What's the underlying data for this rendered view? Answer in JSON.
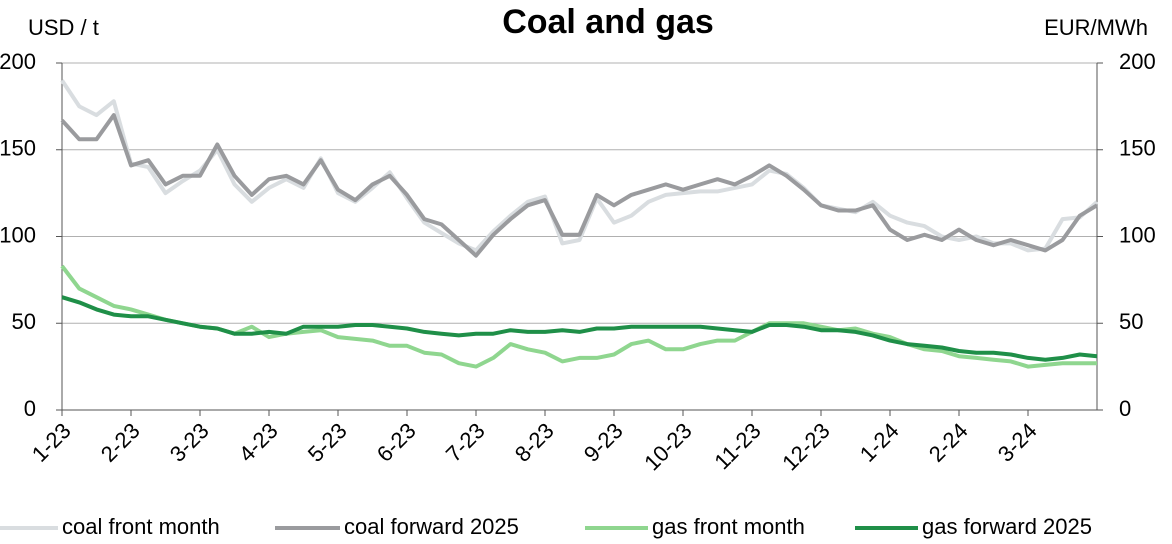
{
  "chart_data": {
    "type": "line",
    "title": "Coal and gas",
    "y_label": "USD / t",
    "y2_label": "EUR/MWh",
    "x": [
      0,
      0.25,
      0.5,
      0.75,
      1,
      1.25,
      1.5,
      1.75,
      2,
      2.25,
      2.5,
      2.75,
      3,
      3.25,
      3.5,
      3.75,
      4,
      4.25,
      4.5,
      4.75,
      5,
      5.25,
      5.5,
      5.75,
      6,
      6.25,
      6.5,
      6.75,
      7,
      7.25,
      7.5,
      7.75,
      8,
      8.25,
      8.5,
      8.75,
      9,
      9.25,
      9.5,
      9.75,
      10,
      10.25,
      10.5,
      10.75,
      11,
      11.25,
      11.5,
      11.75,
      12,
      12.25,
      12.5,
      12.75,
      13,
      13.25,
      13.5,
      13.75,
      14,
      14.25,
      14.5,
      14.75,
      15
    ],
    "xlim": [
      0,
      15
    ],
    "xticks": [
      {
        "value": 0,
        "label": "1-23"
      },
      {
        "value": 1,
        "label": "2-23"
      },
      {
        "value": 2,
        "label": "3-23"
      },
      {
        "value": 3,
        "label": "4-23"
      },
      {
        "value": 4,
        "label": "5-23"
      },
      {
        "value": 5,
        "label": "6-23"
      },
      {
        "value": 6,
        "label": "7-23"
      },
      {
        "value": 7,
        "label": "8-23"
      },
      {
        "value": 8,
        "label": "9-23"
      },
      {
        "value": 9,
        "label": "10-23"
      },
      {
        "value": 10,
        "label": "11-23"
      },
      {
        "value": 11,
        "label": "12-23"
      },
      {
        "value": 12,
        "label": "1-24"
      },
      {
        "value": 13,
        "label": "2-24"
      },
      {
        "value": 14,
        "label": "3-24"
      }
    ],
    "ylim": [
      0,
      200
    ],
    "yticks": [
      0,
      50,
      100,
      150,
      200
    ],
    "y2lim": [
      0,
      200
    ],
    "y2ticks": [
      0,
      50,
      100,
      150,
      200
    ],
    "grid": true,
    "legend": "bottom",
    "series": [
      {
        "name": "coal front month",
        "color": "#d9dde0",
        "values": [
          190,
          175,
          170,
          178,
          142,
          140,
          125,
          132,
          138,
          150,
          130,
          120,
          128,
          133,
          128,
          145,
          125,
          120,
          128,
          137,
          122,
          108,
          102,
          96,
          92,
          103,
          112,
          120,
          123,
          96,
          98,
          122,
          108,
          112,
          120,
          124,
          125,
          126,
          126,
          128,
          130,
          138,
          136,
          128,
          118,
          116,
          114,
          120,
          112,
          108,
          106,
          100,
          98,
          100,
          96,
          96,
          92,
          93,
          110,
          111,
          120
        ],
        "values_axis": "y"
      },
      {
        "name": "coal forward 2025",
        "color": "#9a9b9e",
        "values": [
          167,
          156,
          156,
          170,
          141,
          144,
          130,
          135,
          135,
          153,
          135,
          124,
          133,
          135,
          130,
          144,
          127,
          121,
          130,
          135,
          124,
          110,
          107,
          98,
          89,
          101,
          110,
          118,
          121,
          101,
          101,
          124,
          118,
          124,
          127,
          130,
          127,
          130,
          133,
          130,
          135,
          141,
          135,
          127,
          118,
          115,
          115,
          118,
          104,
          98,
          101,
          98,
          104,
          98,
          95,
          98,
          95,
          92,
          98,
          112,
          118
        ]
      },
      {
        "name": "gas front month",
        "color": "#8fd68f",
        "axis": "y2",
        "values": [
          83,
          70,
          65,
          60,
          58,
          55,
          52,
          50,
          48,
          47,
          44,
          48,
          42,
          44,
          45,
          46,
          42,
          41,
          40,
          37,
          37,
          33,
          32,
          27,
          25,
          30,
          38,
          35,
          33,
          28,
          30,
          30,
          32,
          38,
          40,
          35,
          35,
          38,
          40,
          40,
          45,
          50,
          50,
          50,
          48,
          46,
          47,
          44,
          42,
          38,
          35,
          34,
          31,
          30,
          29,
          28,
          25,
          26,
          27,
          27,
          27
        ]
      },
      {
        "name": "gas forward 2025",
        "color": "#1f8f48",
        "axis": "y2",
        "values": [
          65,
          62,
          58,
          55,
          54,
          54,
          52,
          50,
          48,
          47,
          44,
          44,
          45,
          44,
          48,
          48,
          48,
          49,
          49,
          48,
          47,
          45,
          44,
          43,
          44,
          44,
          46,
          45,
          45,
          46,
          45,
          47,
          47,
          48,
          48,
          48,
          48,
          48,
          47,
          46,
          45,
          49,
          49,
          48,
          46,
          46,
          45,
          43,
          40,
          38,
          37,
          36,
          34,
          33,
          33,
          32,
          30,
          29,
          30,
          32,
          31
        ]
      }
    ]
  }
}
